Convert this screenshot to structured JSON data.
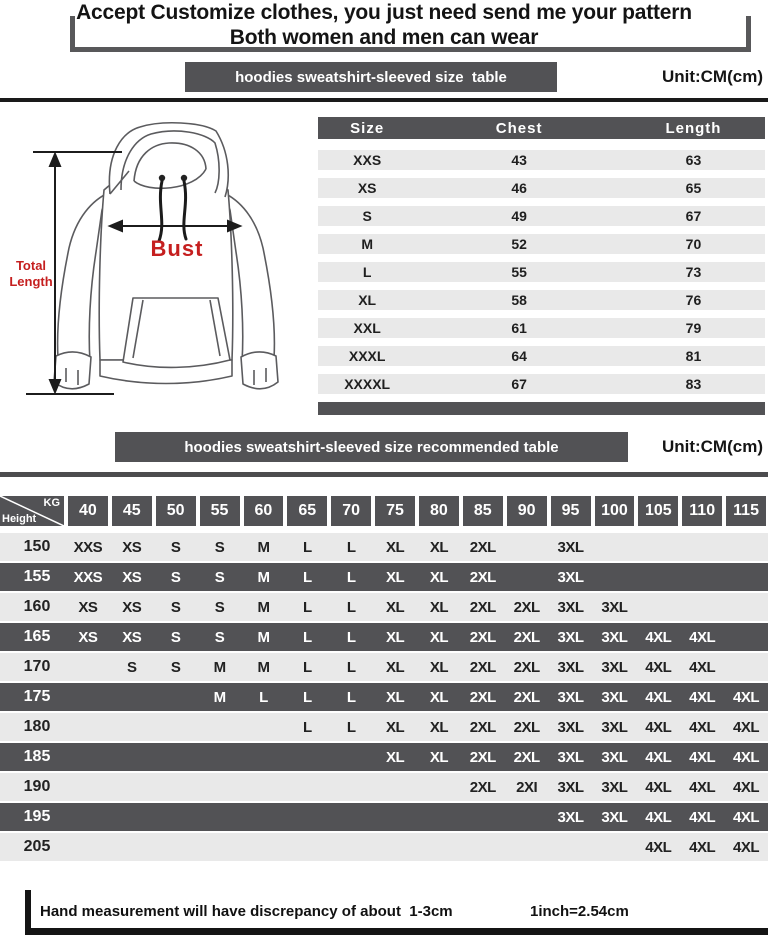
{
  "page": {
    "title_line1": "Accept Customize clothes, you just need send me your pattern",
    "title_line2": "Both women and men can wear"
  },
  "size_section": {
    "header": "hoodies sweatshirt-sleeved size  table",
    "unit": "Unit:CM(cm)",
    "diagram": {
      "total_length_label": "Total Length",
      "bust_label": "Bust"
    },
    "table": {
      "columns": [
        "Size",
        "Chest",
        "Length"
      ],
      "rows": [
        {
          "size": "XXS",
          "chest": "43",
          "length": "63"
        },
        {
          "size": "XS",
          "chest": "46",
          "length": "65"
        },
        {
          "size": "S",
          "chest": "49",
          "length": "67"
        },
        {
          "size": "M",
          "chest": "52",
          "length": "70"
        },
        {
          "size": "L",
          "chest": "55",
          "length": "73"
        },
        {
          "size": "XL",
          "chest": "58",
          "length": "76"
        },
        {
          "size": "XXL",
          "chest": "61",
          "length": "79"
        },
        {
          "size": "XXXL",
          "chest": "64",
          "length": "81"
        },
        {
          "size": "XXXXL",
          "chest": "67",
          "length": "83"
        }
      ]
    }
  },
  "recommend_section": {
    "header": "hoodies sweatshirt-sleeved size recommended table",
    "unit": "Unit:CM(cm)",
    "corner": {
      "top": "KG",
      "bottom": "Height"
    },
    "weight_columns": [
      "40",
      "45",
      "50",
      "55",
      "60",
      "65",
      "70",
      "75",
      "80",
      "85",
      "90",
      "95",
      "100",
      "105",
      "110",
      "115"
    ],
    "rows": [
      {
        "height": "150",
        "cells": [
          "XXS",
          "XS",
          "S",
          "S",
          "M",
          "L",
          "L",
          "XL",
          "XL",
          "2XL",
          "",
          "3XL",
          "",
          "",
          "",
          ""
        ]
      },
      {
        "height": "155",
        "cells": [
          "XXS",
          "XS",
          "S",
          "S",
          "M",
          "L",
          "L",
          "XL",
          "XL",
          "2XL",
          "",
          "3XL",
          "",
          "",
          "",
          ""
        ]
      },
      {
        "height": "160",
        "cells": [
          "XS",
          "XS",
          "S",
          "S",
          "M",
          "L",
          "L",
          "XL",
          "XL",
          "2XL",
          "2XL",
          "3XL",
          "3XL",
          "",
          "",
          ""
        ]
      },
      {
        "height": "165",
        "cells": [
          "XS",
          "XS",
          "S",
          "S",
          "M",
          "L",
          "L",
          "XL",
          "XL",
          "2XL",
          "2XL",
          "3XL",
          "3XL",
          "4XL",
          "4XL",
          ""
        ]
      },
      {
        "height": "170",
        "cells": [
          "",
          "S",
          "S",
          "M",
          "M",
          "L",
          "L",
          "XL",
          "XL",
          "2XL",
          "2XL",
          "3XL",
          "3XL",
          "4XL",
          "4XL",
          ""
        ]
      },
      {
        "height": "175",
        "cells": [
          "",
          "",
          "",
          "M",
          "L",
          "L",
          "L",
          "XL",
          "XL",
          "2XL",
          "2XL",
          "3XL",
          "3XL",
          "4XL",
          "4XL",
          "4XL"
        ]
      },
      {
        "height": "180",
        "cells": [
          "",
          "",
          "",
          "",
          "",
          "L",
          "L",
          "XL",
          "XL",
          "2XL",
          "2XL",
          "3XL",
          "3XL",
          "4XL",
          "4XL",
          "4XL"
        ]
      },
      {
        "height": "185",
        "cells": [
          "",
          "",
          "",
          "",
          "",
          "",
          "",
          "XL",
          "XL",
          "2XL",
          "2XL",
          "3XL",
          "3XL",
          "4XL",
          "4XL",
          "4XL"
        ]
      },
      {
        "height": "190",
        "cells": [
          "",
          "",
          "",
          "",
          "",
          "",
          "",
          "",
          "",
          "2XL",
          "2XI",
          "3XL",
          "3XL",
          "4XL",
          "4XL",
          "4XL"
        ]
      },
      {
        "height": "195",
        "cells": [
          "",
          "",
          "",
          "",
          "",
          "",
          "",
          "",
          "",
          "",
          "",
          "3XL",
          "3XL",
          "4XL",
          "4XL",
          "4XL"
        ]
      },
      {
        "height": "205",
        "cells": [
          "",
          "",
          "",
          "",
          "",
          "",
          "",
          "",
          "",
          "",
          "",
          "",
          "",
          "4XL",
          "4XL",
          "4XL"
        ]
      }
    ]
  },
  "footer": {
    "note": "Hand measurement will have discrepancy of about  1-3cm",
    "conversion": "1inch=2.54cm"
  },
  "colors": {
    "dark_bar": "#525255",
    "light_row": "#e9e9e9",
    "accent_red": "#c51f1f"
  }
}
